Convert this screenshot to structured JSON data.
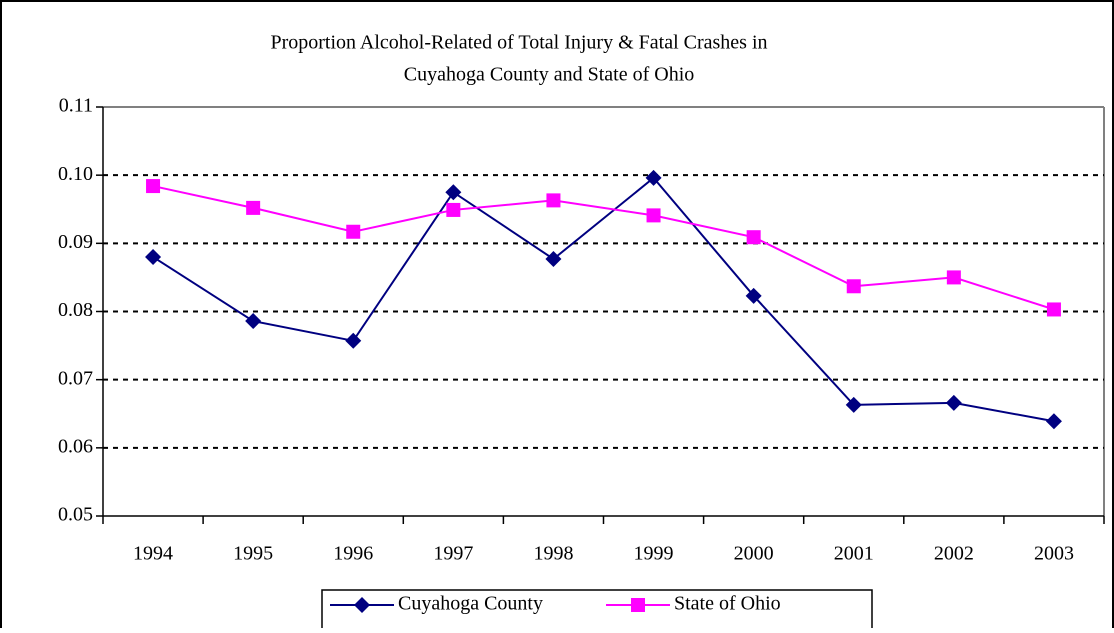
{
  "chart_data": {
    "type": "line",
    "title": [
      "Proportion Alcohol-Related of Total Injury & Fatal Crashes in",
      "Cuyahoga County and State of Ohio"
    ],
    "categories": [
      "1994",
      "1995",
      "1996",
      "1997",
      "1998",
      "1999",
      "2000",
      "2001",
      "2002",
      "2003"
    ],
    "series": [
      {
        "name": "Cuyahoga County",
        "color": "#000080",
        "marker": "diamond",
        "values": [
          0.088,
          0.0786,
          0.0757,
          0.0975,
          0.0877,
          0.0996,
          0.0823,
          0.0663,
          0.0666,
          0.0639
        ]
      },
      {
        "name": "State of Ohio",
        "color": "#ff00ff",
        "marker": "square",
        "values": [
          0.0984,
          0.0952,
          0.0917,
          0.0949,
          0.0963,
          0.0941,
          0.0909,
          0.0837,
          0.085,
          0.0803
        ]
      }
    ],
    "ylim": [
      0.05,
      0.11
    ],
    "yticks": [
      0.05,
      0.06,
      0.07,
      0.08,
      0.09,
      {
        "value": 0.1,
        "label": "0.10"
      },
      0.11
    ],
    "grid": true,
    "legend": "bottom"
  }
}
